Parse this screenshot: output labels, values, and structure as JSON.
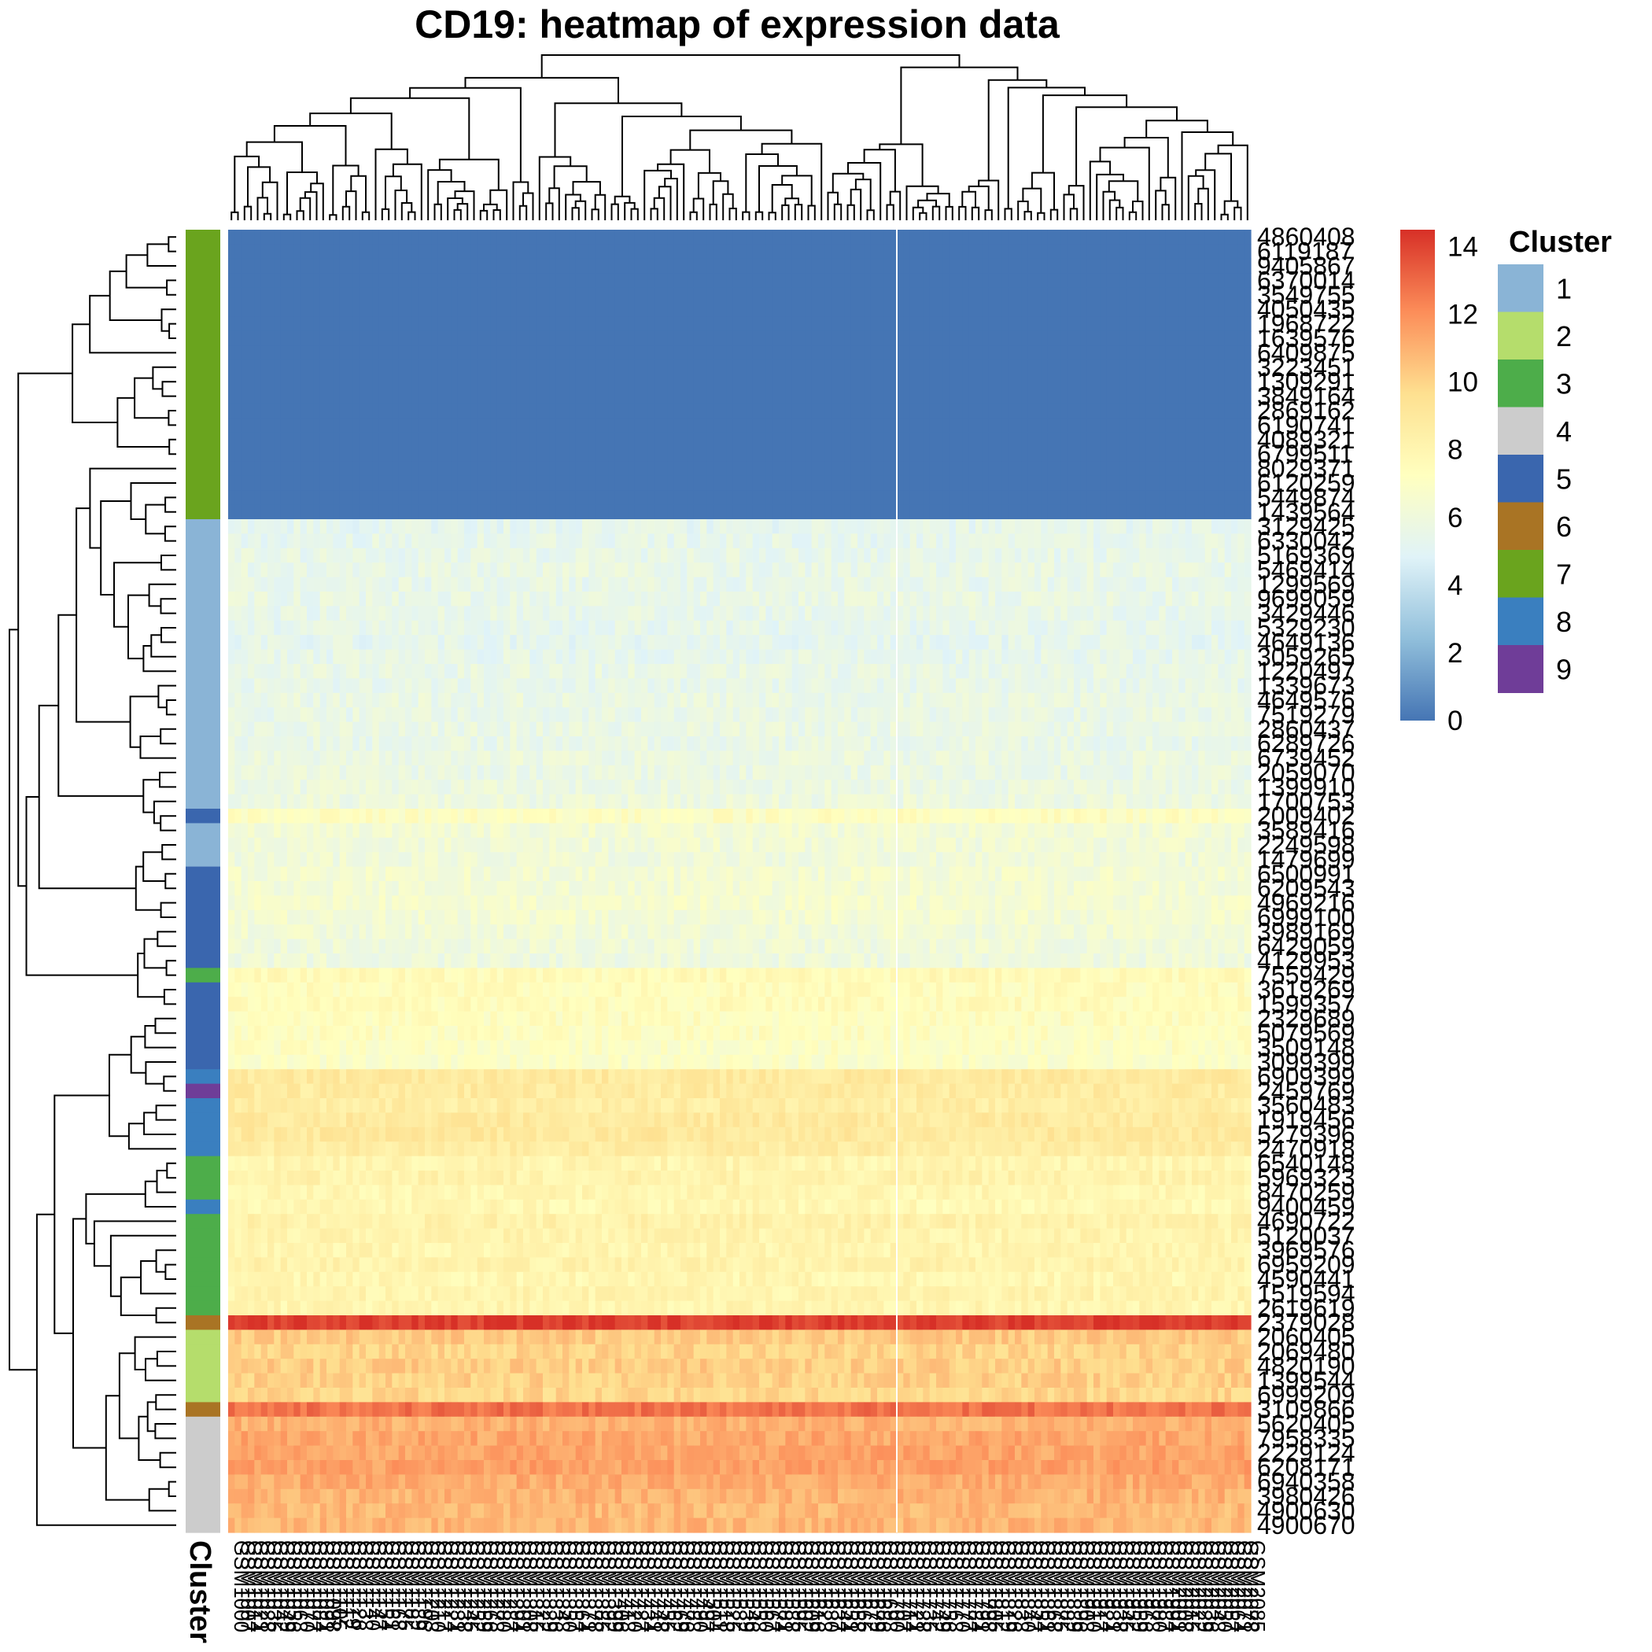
{
  "chart_data": {
    "type": "heatmap",
    "title": "CD19: heatmap of expression data",
    "color_scale": {
      "min": 0,
      "max": 14.5,
      "ticks": [
        0,
        2,
        4,
        6,
        8,
        10,
        12,
        14
      ],
      "colors": [
        "#4575B4",
        "#91BFDB",
        "#E0F3F8",
        "#FFFFBF",
        "#FEE090",
        "#FC8D59",
        "#D73027"
      ]
    },
    "annotation": {
      "name": "Cluster",
      "levels": [
        "1",
        "2",
        "3",
        "4",
        "5",
        "6",
        "7",
        "8",
        "9"
      ],
      "colors": {
        "1": "#8AB4D6",
        "2": "#B5DD6C",
        "3": "#4DAD4A",
        "4": "#CCCCCC",
        "5": "#3A66AE",
        "6": "#A97424",
        "7": "#6AA41E",
        "8": "#3A7FBF",
        "9": "#6F3D98"
      }
    },
    "column_count": 156,
    "column_gap_after": 102,
    "row_dendrogram": true,
    "column_dendrogram": true,
    "rows": [
      {
        "id": "4860408",
        "cluster": "7",
        "value": 0.0
      },
      {
        "id": "6119187",
        "cluster": "7",
        "value": 0.0
      },
      {
        "id": "9405867",
        "cluster": "7",
        "value": 0.0
      },
      {
        "id": "6370014",
        "cluster": "7",
        "value": 0.0
      },
      {
        "id": "3549755",
        "cluster": "7",
        "value": 0.0
      },
      {
        "id": "4050435",
        "cluster": "7",
        "value": 0.0
      },
      {
        "id": "1968722",
        "cluster": "7",
        "value": 0.0
      },
      {
        "id": "1639576",
        "cluster": "7",
        "value": 0.0
      },
      {
        "id": "6409875",
        "cluster": "7",
        "value": 0.0
      },
      {
        "id": "3223451",
        "cluster": "7",
        "value": 0.0
      },
      {
        "id": "1309291",
        "cluster": "7",
        "value": 0.0
      },
      {
        "id": "3849164",
        "cluster": "7",
        "value": 0.0
      },
      {
        "id": "2869162",
        "cluster": "7",
        "value": 0.0
      },
      {
        "id": "6190741",
        "cluster": "7",
        "value": 0.0
      },
      {
        "id": "4089321",
        "cluster": "7",
        "value": 0.0
      },
      {
        "id": "6799511",
        "cluster": "7",
        "value": 0.0
      },
      {
        "id": "8029371",
        "cluster": "7",
        "value": 0.0
      },
      {
        "id": "6120259",
        "cluster": "7",
        "value": 0.0
      },
      {
        "id": "5449874",
        "cluster": "7",
        "value": 0.0
      },
      {
        "id": "1439564",
        "cluster": "7",
        "value": 0.0
      },
      {
        "id": "3129425",
        "cluster": "1",
        "value": 5.3
      },
      {
        "id": "6330042",
        "cluster": "1",
        "value": 5.4
      },
      {
        "id": "5169369",
        "cluster": "1",
        "value": 5.5
      },
      {
        "id": "5469414",
        "cluster": "1",
        "value": 5.6
      },
      {
        "id": "1299569",
        "cluster": "1",
        "value": 5.5
      },
      {
        "id": "9699059",
        "cluster": "1",
        "value": 5.6
      },
      {
        "id": "3429446",
        "cluster": "1",
        "value": 5.5
      },
      {
        "id": "5329230",
        "cluster": "1",
        "value": 5.4
      },
      {
        "id": "4649136",
        "cluster": "1",
        "value": 5.3
      },
      {
        "id": "3059265",
        "cluster": "1",
        "value": 5.4
      },
      {
        "id": "1220497",
        "cluster": "1",
        "value": 5.6
      },
      {
        "id": "1339673",
        "cluster": "1",
        "value": 5.5
      },
      {
        "id": "4649576",
        "cluster": "1",
        "value": 5.7
      },
      {
        "id": "7519279",
        "cluster": "1",
        "value": 5.6
      },
      {
        "id": "2860437",
        "cluster": "1",
        "value": 5.7
      },
      {
        "id": "6289726",
        "cluster": "1",
        "value": 5.6
      },
      {
        "id": "6739452",
        "cluster": "1",
        "value": 5.8
      },
      {
        "id": "2059070",
        "cluster": "1",
        "value": 5.7
      },
      {
        "id": "1399910",
        "cluster": "1",
        "value": 5.8
      },
      {
        "id": "1700753",
        "cluster": "1",
        "value": 5.9
      },
      {
        "id": "2009402",
        "cluster": "5",
        "value": 7.2
      },
      {
        "id": "3589416",
        "cluster": "1",
        "value": 6.3
      },
      {
        "id": "2249598",
        "cluster": "1",
        "value": 6.2
      },
      {
        "id": "1479699",
        "cluster": "1",
        "value": 6.1
      },
      {
        "id": "6500991",
        "cluster": "5",
        "value": 6.4
      },
      {
        "id": "6209543",
        "cluster": "5",
        "value": 6.3
      },
      {
        "id": "4969216",
        "cluster": "5",
        "value": 6.5
      },
      {
        "id": "6999100",
        "cluster": "5",
        "value": 6.4
      },
      {
        "id": "3989169",
        "cluster": "5",
        "value": 6.2
      },
      {
        "id": "6429059",
        "cluster": "5",
        "value": 6.1
      },
      {
        "id": "4129953",
        "cluster": "5",
        "value": 6.0
      },
      {
        "id": "7559429",
        "cluster": "3",
        "value": 7.6
      },
      {
        "id": "3619269",
        "cluster": "5",
        "value": 7.4
      },
      {
        "id": "1599357",
        "cluster": "5",
        "value": 7.5
      },
      {
        "id": "2329689",
        "cluster": "5",
        "value": 7.3
      },
      {
        "id": "5079569",
        "cluster": "5",
        "value": 7.2
      },
      {
        "id": "3509148",
        "cluster": "5",
        "value": 7.1
      },
      {
        "id": "3099399",
        "cluster": "5",
        "value": 6.9
      },
      {
        "id": "6909399",
        "cluster": "8",
        "value": 8.9
      },
      {
        "id": "2459769",
        "cluster": "9",
        "value": 8.8
      },
      {
        "id": "3560483",
        "cluster": "8",
        "value": 8.6
      },
      {
        "id": "1919456",
        "cluster": "8",
        "value": 8.9
      },
      {
        "id": "5279396",
        "cluster": "8",
        "value": 9.0
      },
      {
        "id": "2470918",
        "cluster": "8",
        "value": 8.7
      },
      {
        "id": "6540148",
        "cluster": "3",
        "value": 8.0
      },
      {
        "id": "5969323",
        "cluster": "3",
        "value": 8.2
      },
      {
        "id": "8470259",
        "cluster": "3",
        "value": 7.9
      },
      {
        "id": "9400459",
        "cluster": "8",
        "value": 7.8
      },
      {
        "id": "4690722",
        "cluster": "3",
        "value": 8.3
      },
      {
        "id": "5120037",
        "cluster": "3",
        "value": 8.1
      },
      {
        "id": "3969576",
        "cluster": "3",
        "value": 8.0
      },
      {
        "id": "6959209",
        "cluster": "3",
        "value": 8.2
      },
      {
        "id": "4590441",
        "cluster": "3",
        "value": 7.9
      },
      {
        "id": "1519594",
        "cluster": "3",
        "value": 8.1
      },
      {
        "id": "2619619",
        "cluster": "3",
        "value": 8.0
      },
      {
        "id": "2379028",
        "cluster": "6",
        "value": 14.2
      },
      {
        "id": "2060405",
        "cluster": "2",
        "value": 10.3
      },
      {
        "id": "2069480",
        "cluster": "2",
        "value": 10.0
      },
      {
        "id": "4820190",
        "cluster": "2",
        "value": 10.2
      },
      {
        "id": "1399544",
        "cluster": "2",
        "value": 10.1
      },
      {
        "id": "6999209",
        "cluster": "2",
        "value": 9.9
      },
      {
        "id": "3109866",
        "cluster": "6",
        "value": 12.8
      },
      {
        "id": "5620405",
        "cluster": "4",
        "value": 11.0
      },
      {
        "id": "7958335",
        "cluster": "4",
        "value": 11.3
      },
      {
        "id": "2229124",
        "cluster": "4",
        "value": 11.4
      },
      {
        "id": "6208171",
        "cluster": "4",
        "value": 11.5
      },
      {
        "id": "6940358",
        "cluster": "4",
        "value": 11.2
      },
      {
        "id": "3980426",
        "cluster": "4",
        "value": 11.0
      },
      {
        "id": "4900630",
        "cluster": "4",
        "value": 10.8
      },
      {
        "id": "4900670",
        "cluster": "4",
        "value": 10.9
      }
    ]
  }
}
